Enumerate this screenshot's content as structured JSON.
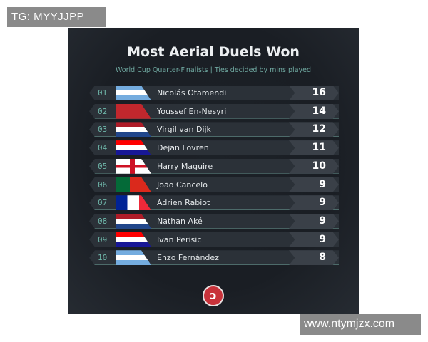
{
  "watermarks": {
    "top_left": "TG: MYYJJPP",
    "bottom_right": "www.ntymjzx.com"
  },
  "title": "Most Aerial Duels Won",
  "subtitle": "World Cup Quarter-Finalists | Ties decided by mins played",
  "rows": [
    {
      "rank": "01",
      "flag": "argentina",
      "name": "Nicolás Otamendi",
      "value": "16"
    },
    {
      "rank": "02",
      "flag": "morocco",
      "name": "Youssef En-Nesyri",
      "value": "14"
    },
    {
      "rank": "03",
      "flag": "netherlands",
      "name": "Virgil van Dijk",
      "value": "12"
    },
    {
      "rank": "04",
      "flag": "croatia",
      "name": "Dejan Lovren",
      "value": "11"
    },
    {
      "rank": "05",
      "flag": "england",
      "name": "Harry Maguire",
      "value": "10"
    },
    {
      "rank": "06",
      "flag": "portugal",
      "name": "João Cancelo",
      "value": "9"
    },
    {
      "rank": "07",
      "flag": "france",
      "name": "Adrien Rabiot",
      "value": "9"
    },
    {
      "rank": "08",
      "flag": "netherlands",
      "name": "Nathan Aké",
      "value": "9"
    },
    {
      "rank": "09",
      "flag": "croatia",
      "name": "Ivan Perisic",
      "value": "9"
    },
    {
      "rank": "10",
      "flag": "argentina",
      "name": "Enzo Fernández",
      "value": "8"
    }
  ],
  "logo_icon": "swirl-logo-icon"
}
